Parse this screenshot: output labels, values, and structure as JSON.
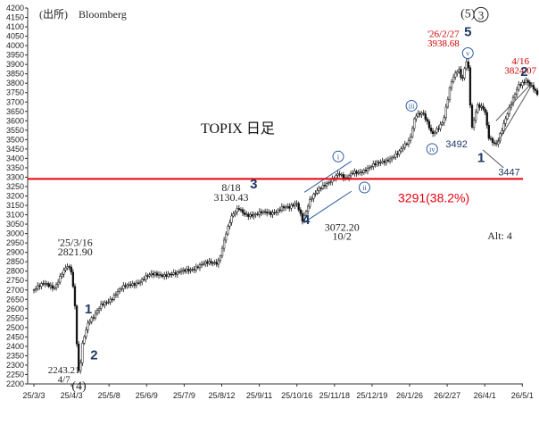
{
  "chart_data": {
    "type": "candlestick",
    "source": "(出所)　Bloomberg",
    "title": "TOPIX 日足",
    "x_ticks": [
      "25/3/3",
      "25/4/3",
      "25/5/8",
      "25/6/9",
      "25/7/9",
      "25/8/12",
      "25/9/11",
      "25/10/16",
      "25/11/18",
      "25/12/19",
      "26/1/26",
      "26/2/27",
      "26/4/1",
      "26/5/1"
    ],
    "y_ticks": [
      2200,
      2250,
      2300,
      2350,
      2400,
      2450,
      2500,
      2550,
      2600,
      2650,
      2700,
      2750,
      2800,
      2850,
      2900,
      2950,
      3000,
      3050,
      3100,
      3150,
      3200,
      3250,
      3300,
      3350,
      3400,
      3450,
      3500,
      3550,
      3600,
      3650,
      3700,
      3750,
      3800,
      3850,
      3900,
      3950,
      4000,
      4050,
      4100,
      4150,
      4200
    ],
    "ylim": [
      2200,
      4200
    ],
    "x_range": [
      0,
      13.6
    ],
    "reference_line": {
      "value": 3291,
      "label": "3291(38.2%)",
      "color": "#e8000b"
    },
    "price_path": [
      [
        0.0,
        2700
      ],
      [
        0.3,
        2730
      ],
      [
        0.55,
        2720
      ],
      [
        0.75,
        2790
      ],
      [
        0.9,
        2820
      ],
      [
        1.0,
        2790
      ],
      [
        1.1,
        2600
      ],
      [
        1.15,
        2380
      ],
      [
        1.2,
        2250
      ],
      [
        1.3,
        2440
      ],
      [
        1.45,
        2530
      ],
      [
        1.6,
        2550
      ],
      [
        1.8,
        2620
      ],
      [
        2.0,
        2650
      ],
      [
        2.3,
        2700
      ],
      [
        2.6,
        2730
      ],
      [
        3.0,
        2770
      ],
      [
        3.3,
        2780
      ],
      [
        3.6,
        2790
      ],
      [
        3.8,
        2780
      ],
      [
        4.1,
        2810
      ],
      [
        4.4,
        2830
      ],
      [
        4.7,
        2840
      ],
      [
        4.9,
        2850
      ],
      [
        5.0,
        2920
      ],
      [
        5.1,
        3000
      ],
      [
        5.25,
        3080
      ],
      [
        5.45,
        3130
      ],
      [
        5.6,
        3110
      ],
      [
        5.9,
        3100
      ],
      [
        6.3,
        3110
      ],
      [
        6.6,
        3140
      ],
      [
        6.8,
        3130
      ],
      [
        7.0,
        3160
      ],
      [
        7.15,
        3080
      ],
      [
        7.35,
        3180
      ],
      [
        7.6,
        3230
      ],
      [
        7.9,
        3290
      ],
      [
        8.1,
        3320
      ],
      [
        8.3,
        3280
      ],
      [
        8.5,
        3330
      ],
      [
        8.9,
        3340
      ],
      [
        9.3,
        3390
      ],
      [
        9.7,
        3420
      ],
      [
        10.0,
        3500
      ],
      [
        10.15,
        3640
      ],
      [
        10.35,
        3640
      ],
      [
        10.6,
        3520
      ],
      [
        10.9,
        3610
      ],
      [
        11.1,
        3800
      ],
      [
        11.3,
        3870
      ],
      [
        11.4,
        3810
      ],
      [
        11.5,
        3920
      ],
      [
        11.55,
        3938
      ],
      [
        11.65,
        3560
      ],
      [
        11.8,
        3680
      ],
      [
        12.0,
        3650
      ],
      [
        12.1,
        3510
      ],
      [
        12.3,
        3480
      ],
      [
        12.5,
        3580
      ],
      [
        12.7,
        3680
      ],
      [
        12.9,
        3790
      ],
      [
        13.1,
        3824
      ],
      [
        13.3,
        3770
      ],
      [
        13.4,
        3730
      ]
    ],
    "annotations": [
      {
        "text": "'25/3/16",
        "x": 1.1,
        "y": 2935,
        "color": "#222",
        "font": "serif",
        "size": 12
      },
      {
        "text": "2821.90",
        "x": 1.1,
        "y": 2885,
        "color": "#222",
        "font": "serif",
        "size": 12
      },
      {
        "text": "2243.21",
        "x": 0.8,
        "y": 2257,
        "color": "#222",
        "font": "serif",
        "size": 11
      },
      {
        "text": "4/7",
        "x": 0.8,
        "y": 2207,
        "color": "#222",
        "font": "serif",
        "size": 11
      },
      {
        "text": "(4)",
        "x": 1.2,
        "y": 2168,
        "color": "#222",
        "font": "serif",
        "size": 14
      },
      {
        "text": "8/18",
        "x": 5.25,
        "y": 3225,
        "color": "#222",
        "font": "serif",
        "size": 12
      },
      {
        "text": "3130.43",
        "x": 5.25,
        "y": 3175,
        "color": "#222",
        "font": "serif",
        "size": 12
      },
      {
        "text": "3072.20",
        "x": 8.2,
        "y": 3015,
        "color": "#222",
        "font": "serif",
        "size": 12
      },
      {
        "text": "10/2",
        "x": 8.2,
        "y": 2967,
        "color": "#222",
        "font": "serif",
        "size": 12
      },
      {
        "text": "'26/2/27",
        "x": 10.9,
        "y": 4045,
        "color": "#cc0000",
        "font": "serif",
        "size": 11
      },
      {
        "text": "3938.68",
        "x": 10.9,
        "y": 3995,
        "color": "#cc0000",
        "font": "serif",
        "size": 11
      },
      {
        "text": "4/16",
        "x": 12.95,
        "y": 3900,
        "color": "#cc0000",
        "font": "serif",
        "size": 11
      },
      {
        "text": "3824.07",
        "x": 12.95,
        "y": 3852,
        "color": "#cc0000",
        "font": "serif",
        "size": 11
      },
      {
        "text": "3492",
        "x": 11.25,
        "y": 3460,
        "color": "#1f3864",
        "font": "sans",
        "size": 11
      },
      {
        "text": "3447",
        "x": 12.65,
        "y": 3310,
        "color": "#1f3864",
        "font": "sans",
        "size": 11
      },
      {
        "text": "Alt: 4",
        "x": 12.4,
        "y": 2970,
        "color": "#222",
        "font": "serif",
        "size": 12
      },
      {
        "text": "(5)",
        "x": 11.55,
        "y": 4150,
        "color": "#222",
        "font": "serif",
        "size": 14
      }
    ],
    "wave_labels": [
      {
        "text": "1",
        "x": 1.45,
        "y": 2575
      },
      {
        "text": "2",
        "x": 1.6,
        "y": 2330
      },
      {
        "text": "3",
        "x": 5.85,
        "y": 3240
      },
      {
        "text": "4",
        "x": 7.25,
        "y": 3050
      },
      {
        "text": "5",
        "x": 11.55,
        "y": 4050
      },
      {
        "text": "1",
        "x": 11.9,
        "y": 3380
      },
      {
        "text": "2",
        "x": 13.05,
        "y": 3840
      }
    ],
    "circled_labels": [
      {
        "text": "i",
        "x": 8.1,
        "y": 3410
      },
      {
        "text": "ii",
        "x": 8.8,
        "y": 3245
      },
      {
        "text": "iii",
        "x": 10.05,
        "y": 3680
      },
      {
        "text": "iv",
        "x": 10.6,
        "y": 3450
      },
      {
        "text": "v",
        "x": 11.55,
        "y": 3960
      },
      {
        "text": "3",
        "x": 11.9,
        "y": 4165
      }
    ],
    "channels": [
      {
        "from": [
          7.2,
          3220
        ],
        "to": [
          8.45,
          3385
        ],
        "color": "#2e5d9f"
      },
      {
        "from": [
          7.2,
          3060
        ],
        "to": [
          8.45,
          3225
        ],
        "color": "#2e5d9f"
      },
      {
        "from": [
          12.3,
          3600
        ],
        "to": [
          13.25,
          3800
        ],
        "color": "#555"
      },
      {
        "from": [
          12.3,
          3470
        ],
        "to": [
          13.25,
          3790
        ],
        "color": "#555"
      },
      {
        "from": [
          11.95,
          3445
        ],
        "to": [
          12.5,
          3350
        ],
        "color": "#555"
      }
    ]
  }
}
